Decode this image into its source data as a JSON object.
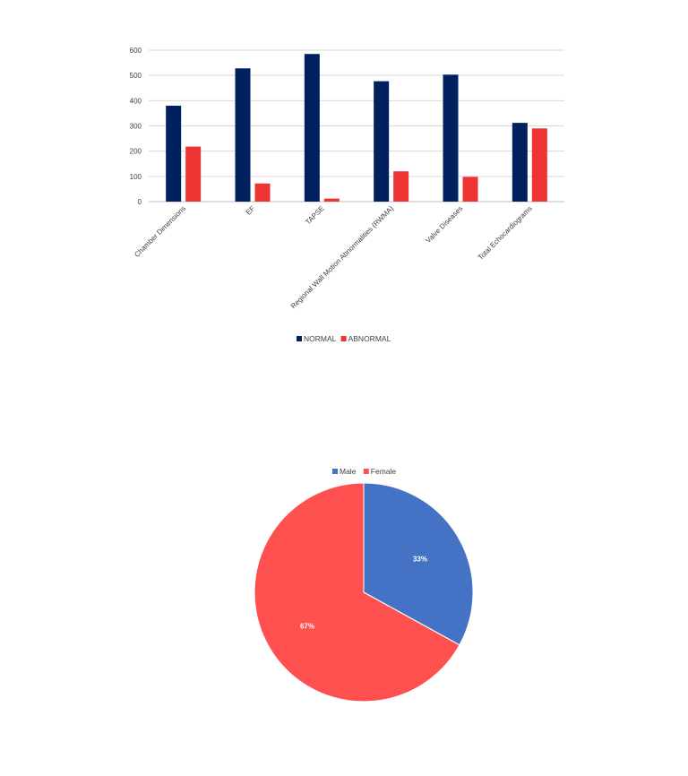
{
  "chart_data": [
    {
      "type": "bar",
      "categories": [
        "Chamber Dimensions",
        "EF",
        "TAPSE",
        "Regional Wall Motion Abnormalities (RWMA)",
        "Valve Diseases",
        "Total Echocardiograms"
      ],
      "series": [
        {
          "name": "NORMAL",
          "values": [
            380,
            528,
            585,
            477,
            503,
            312
          ],
          "color": "#002060"
        },
        {
          "name": "ABNORMAL",
          "values": [
            218,
            72,
            12,
            120,
            98,
            290
          ],
          "color": "#EE3333"
        }
      ],
      "ylim": [
        0,
        600
      ],
      "yticks": [
        0,
        100,
        200,
        300,
        400,
        500,
        600
      ],
      "grid": true,
      "legend": "bottom"
    },
    {
      "type": "pie",
      "labels": [
        "Male",
        "Female"
      ],
      "values": [
        33,
        67
      ],
      "value_labels": [
        "33%",
        "67%"
      ],
      "colors": [
        "#4472C4",
        "#FF5050"
      ],
      "legend": "top"
    }
  ]
}
